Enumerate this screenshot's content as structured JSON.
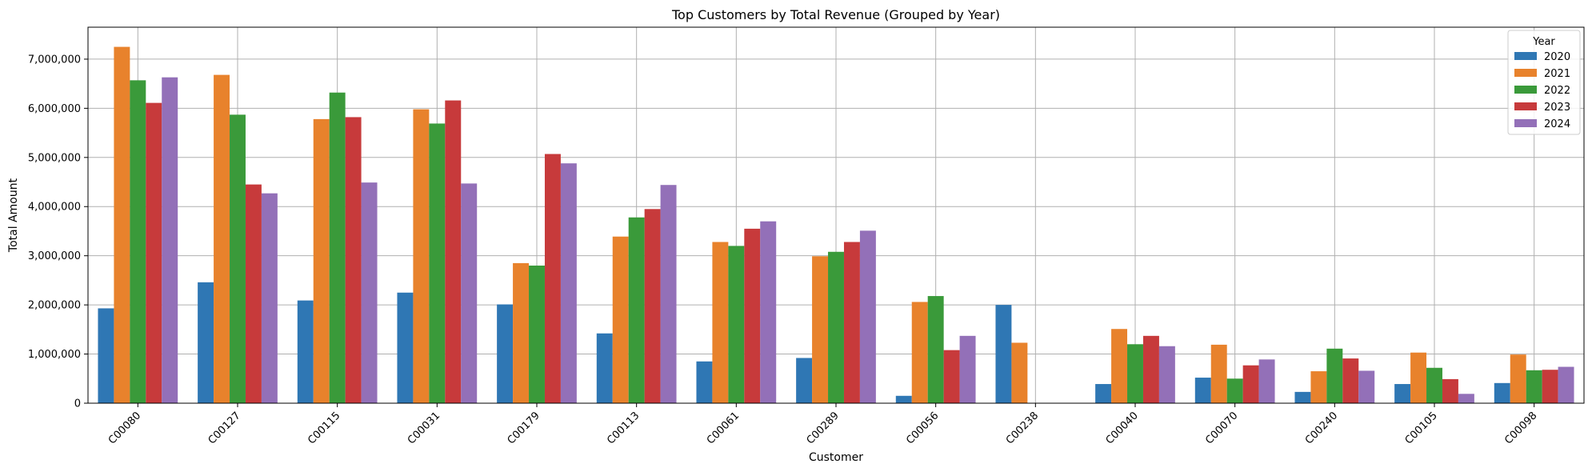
{
  "chart_data": {
    "type": "bar",
    "title": "Top Customers by Total Revenue (Grouped by Year)",
    "xlabel": "Customer",
    "ylabel": "Total Amount",
    "ylim": [
      0,
      7650000
    ],
    "yticks": [
      0,
      1000000,
      2000000,
      3000000,
      4000000,
      5000000,
      6000000,
      7000000
    ],
    "ytick_labels": [
      "0",
      "1,000,000",
      "2,000,000",
      "3,000,000",
      "4,000,000",
      "5,000,000",
      "6,000,000",
      "7,000,000"
    ],
    "grid": true,
    "legend_title": "Year",
    "legend_position": "top-right",
    "categories": [
      "C00080",
      "C00127",
      "C00115",
      "C00031",
      "C00179",
      "C00113",
      "C00061",
      "C00289",
      "C00056",
      "C00238",
      "C00040",
      "C00070",
      "C00240",
      "C00105",
      "C00098"
    ],
    "series": [
      {
        "name": "2020",
        "color": "#2f77b4",
        "values": [
          1930000,
          2460000,
          2090000,
          2250000,
          2010000,
          1420000,
          850000,
          920000,
          150000,
          2000000,
          390000,
          520000,
          230000,
          390000,
          410000
        ]
      },
      {
        "name": "2021",
        "color": "#e8822c",
        "values": [
          7250000,
          6680000,
          5780000,
          5980000,
          2850000,
          3390000,
          3280000,
          2990000,
          2060000,
          1230000,
          1510000,
          1190000,
          650000,
          1030000,
          990000
        ]
      },
      {
        "name": "2022",
        "color": "#3a9a3a",
        "values": [
          6570000,
          5870000,
          6320000,
          5690000,
          2800000,
          3780000,
          3200000,
          3080000,
          2180000,
          0,
          1200000,
          500000,
          1110000,
          720000,
          670000
        ]
      },
      {
        "name": "2023",
        "color": "#c73a3b",
        "values": [
          6110000,
          4450000,
          5820000,
          6160000,
          5070000,
          3950000,
          3550000,
          3280000,
          1080000,
          0,
          1370000,
          770000,
          910000,
          490000,
          680000
        ]
      },
      {
        "name": "2024",
        "color": "#9370b8",
        "values": [
          6630000,
          4270000,
          4490000,
          4470000,
          4880000,
          4440000,
          3700000,
          3510000,
          1370000,
          0,
          1160000,
          890000,
          660000,
          190000,
          740000
        ]
      }
    ]
  }
}
